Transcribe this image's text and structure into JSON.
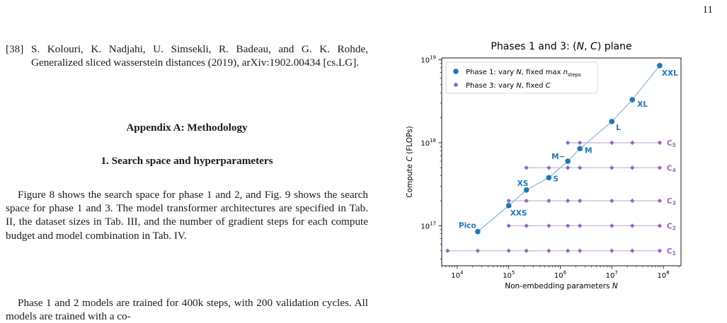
{
  "page_number": "11",
  "reference": {
    "number": "[38]",
    "text": "S. Kolouri, K. Nadjahi, U. Simsekli, R. Badeau, and G. K. Rohde, Generalized sliced wasserstein distances (2019), arXiv:1902.00434 [cs.LG]."
  },
  "appendix_title": "Appendix A: Methodology",
  "subsection_title": "1.   Search space and hyperparameters",
  "paragraphs": [
    "Figure 8 shows the search space for phase 1 and 2, and Fig. 9 shows the search space for phase 1 and 3. The model transformer architectures are specified in Tab. II, the dataset sizes in Tab. III, and the number of gradient steps for each compute budget and model combination in Tab. IV.",
    "Phase 1 and 2 models are trained for 400k steps, with 200 validation cycles. All models are trained with a co-"
  ],
  "chart_data": {
    "type": "scatter",
    "title": "Phases 1 and 3:  (N, C) plane",
    "xlabel": "Non-embedding parameters  N",
    "ylabel": "Compute  C  (FLOPs)",
    "xscale": "log",
    "yscale": "log",
    "xlim": [
      5000,
      220000000
    ],
    "ylim": [
      3.3e+16,
      1.05e+19
    ],
    "x_ticks": [
      {
        "value": 10000,
        "base": "10",
        "exp": "4"
      },
      {
        "value": 100000,
        "base": "10",
        "exp": "5"
      },
      {
        "value": 1000000,
        "base": "10",
        "exp": "6"
      },
      {
        "value": 10000000,
        "base": "10",
        "exp": "7"
      },
      {
        "value": 100000000,
        "base": "10",
        "exp": "8"
      }
    ],
    "y_ticks": [
      {
        "value": 1e+17,
        "base": "10",
        "exp": "17"
      },
      {
        "value": 1e+18,
        "base": "10",
        "exp": "18"
      },
      {
        "value": 1e+19,
        "base": "10",
        "exp": "19"
      }
    ],
    "grid": false,
    "legend_position": "top-left",
    "colors": {
      "phase1": "#1f77b4",
      "phase3": "#9467bd",
      "line1": "#86b5db",
      "line3": "#c6aedb"
    },
    "series": [
      {
        "name": "Phase 1: vary N, fixed max n_steps",
        "legend_main": "Phase 1: vary ",
        "legend_var": "N",
        "legend_mid": ", fixed max ",
        "legend_sym": "n",
        "legend_sub": "steps",
        "marker": "circle",
        "points": [
          {
            "x": 25000,
            "y": 8.5e+16,
            "label": "Pico"
          },
          {
            "x": 100000,
            "y": 1.75e+17,
            "label": "XXS"
          },
          {
            "x": 220000,
            "y": 2.7e+17,
            "label": "XS"
          },
          {
            "x": 600000,
            "y": 3.8e+17,
            "label": "S"
          },
          {
            "x": 1400000,
            "y": 6e+17,
            "label": "M−"
          },
          {
            "x": 2400000,
            "y": 8.5e+17,
            "label": "M"
          },
          {
            "x": 10000000,
            "y": 1.8e+18,
            "label": "L"
          },
          {
            "x": 25000000,
            "y": 3.3e+18,
            "label": "XL"
          },
          {
            "x": 85000000,
            "y": 8.5e+18,
            "label": "XXL"
          }
        ]
      },
      {
        "name": "Phase 3: vary N, fixed C",
        "legend_main": "Phase 3: vary ",
        "legend_var": "N",
        "legend_mid": ", fixed ",
        "legend_sym": "C",
        "legend_sub": "",
        "marker": "diamond",
        "budgets": [
          {
            "label": "C",
            "sub": "1",
            "y": 5e+16,
            "x": [
              6500,
              25000,
              100000,
              220000,
              600000,
              1400000,
              2400000,
              10000000,
              25000000,
              85000000
            ]
          },
          {
            "label": "C",
            "sub": "2",
            "y": 1e+17,
            "x": [
              100000,
              220000,
              600000,
              1400000,
              2400000,
              10000000,
              25000000,
              85000000
            ]
          },
          {
            "label": "C",
            "sub": "3",
            "y": 2e+17,
            "x": [
              100000,
              220000,
              600000,
              1400000,
              2400000,
              10000000,
              25000000,
              85000000
            ]
          },
          {
            "label": "C",
            "sub": "4",
            "y": 5e+17,
            "x": [
              220000,
              600000,
              1400000,
              2400000,
              10000000,
              25000000,
              85000000
            ]
          },
          {
            "label": "C",
            "sub": "5",
            "y": 1e+18,
            "x": [
              1400000,
              2400000,
              10000000,
              25000000,
              85000000
            ]
          }
        ]
      }
    ]
  }
}
